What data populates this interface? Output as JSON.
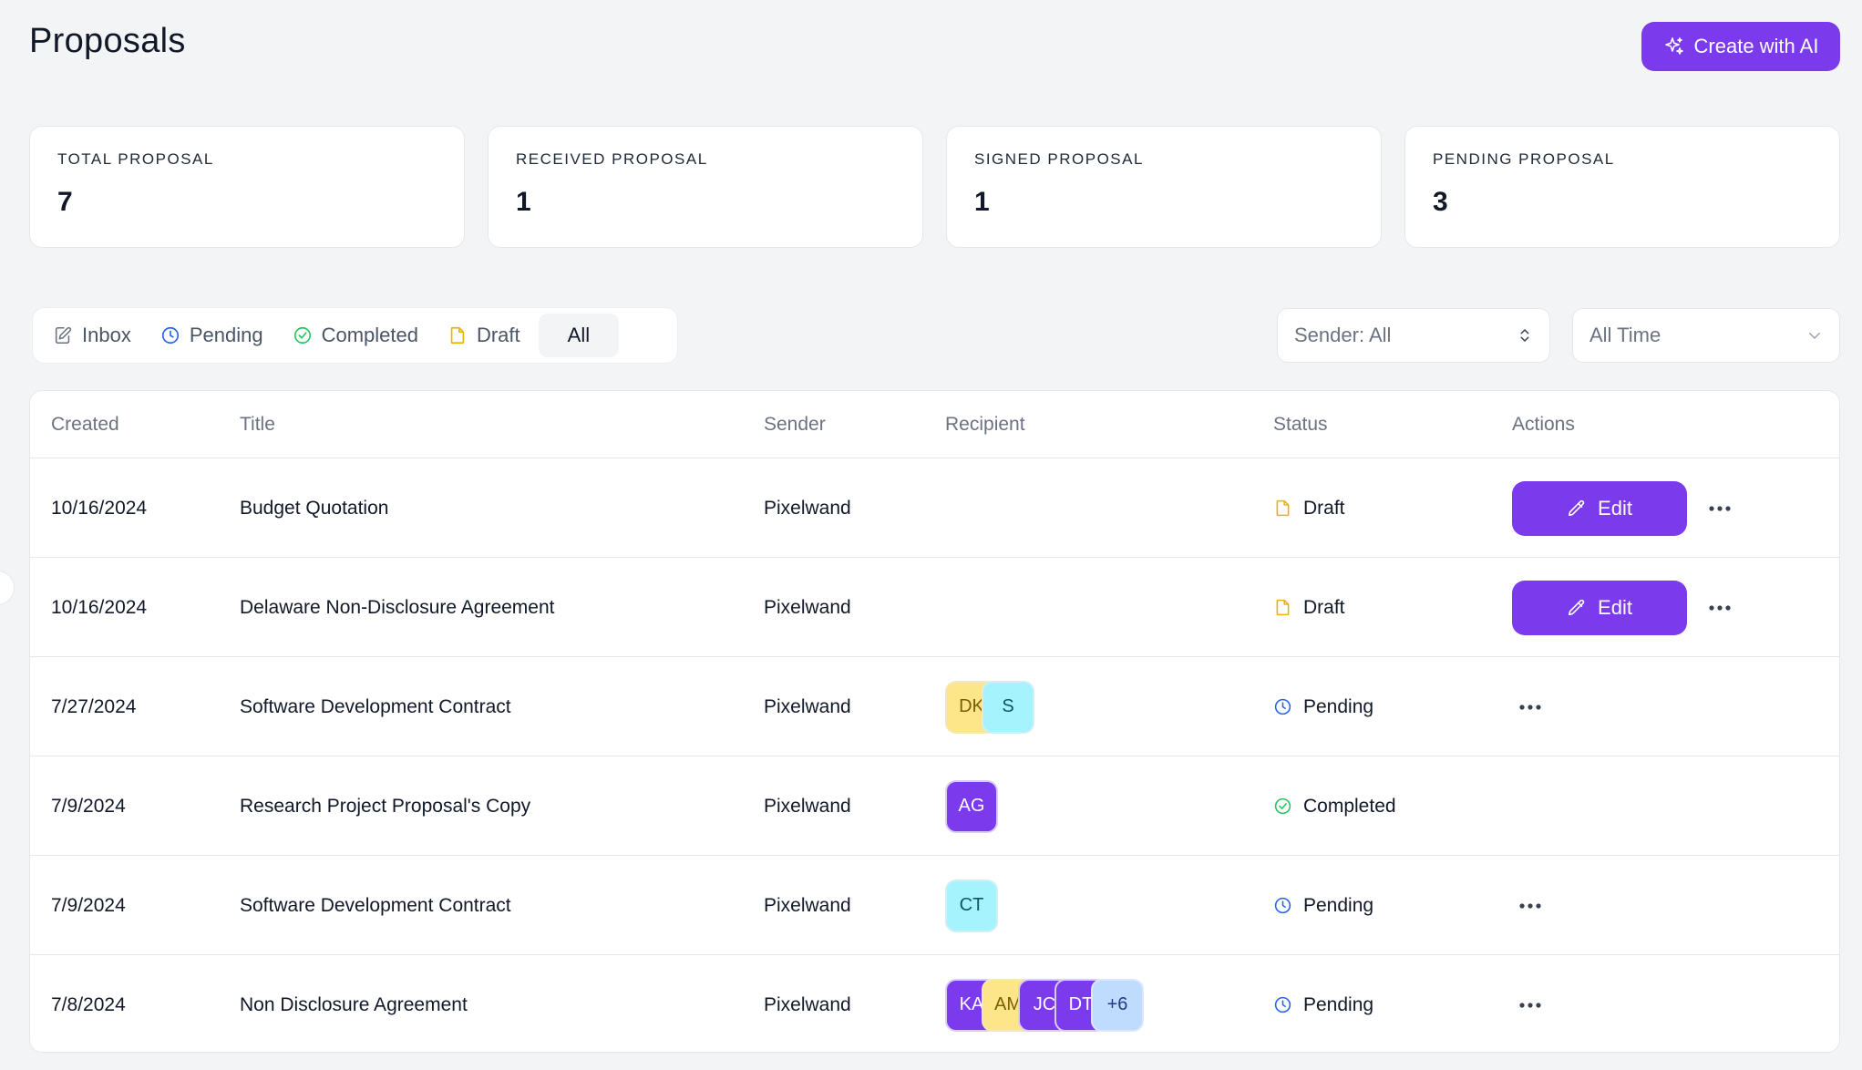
{
  "header": {
    "title": "Proposals",
    "create_label": "Create with AI"
  },
  "stats": [
    {
      "label": "TOTAL PROPOSAL",
      "value": "7"
    },
    {
      "label": "RECEIVED PROPOSAL",
      "value": "1"
    },
    {
      "label": "SIGNED PROPOSAL",
      "value": "1"
    },
    {
      "label": "PENDING PROPOSAL",
      "value": "3"
    }
  ],
  "tabs": [
    {
      "label": "Inbox",
      "icon": "edit-document-icon"
    },
    {
      "label": "Pending",
      "icon": "clock-icon"
    },
    {
      "label": "Completed",
      "icon": "check-circle-icon"
    },
    {
      "label": "Draft",
      "icon": "file-icon"
    },
    {
      "label": "All",
      "active": true
    }
  ],
  "filters": {
    "sender": "Sender: All",
    "time": "All Time"
  },
  "table": {
    "columns": [
      "Created",
      "Title",
      "Sender",
      "Recipient",
      "Status",
      "Actions"
    ],
    "edit_label": "Edit",
    "rows": [
      {
        "created": "10/16/2024",
        "title": "Budget Quotation",
        "sender": "Pixelwand",
        "recipients": [],
        "status": "Draft"
      },
      {
        "created": "10/16/2024",
        "title": "Delaware Non-Disclosure Agreement",
        "sender": "Pixelwand",
        "recipients": [],
        "status": "Draft"
      },
      {
        "created": "7/27/2024",
        "title": "Software Development Contract",
        "sender": "Pixelwand",
        "recipients": [
          "DK",
          "S"
        ],
        "status": "Pending"
      },
      {
        "created": "7/9/2024",
        "title": "Research Project Proposal's Copy",
        "sender": "Pixelwand",
        "recipients": [
          "AG"
        ],
        "status": "Completed"
      },
      {
        "created": "7/9/2024",
        "title": "Software Development Contract",
        "sender": "Pixelwand",
        "recipients": [
          "CT"
        ],
        "status": "Pending"
      },
      {
        "created": "7/8/2024",
        "title": "Non Disclosure Agreement",
        "sender": "Pixelwand",
        "recipients": [
          "KA",
          "AM",
          "JC",
          "DT",
          "+6"
        ],
        "status": "Pending"
      }
    ]
  },
  "colors": {
    "accent": "#7c3aed",
    "draft": "#eab308",
    "pending": "#2563eb",
    "completed": "#22c55e"
  }
}
